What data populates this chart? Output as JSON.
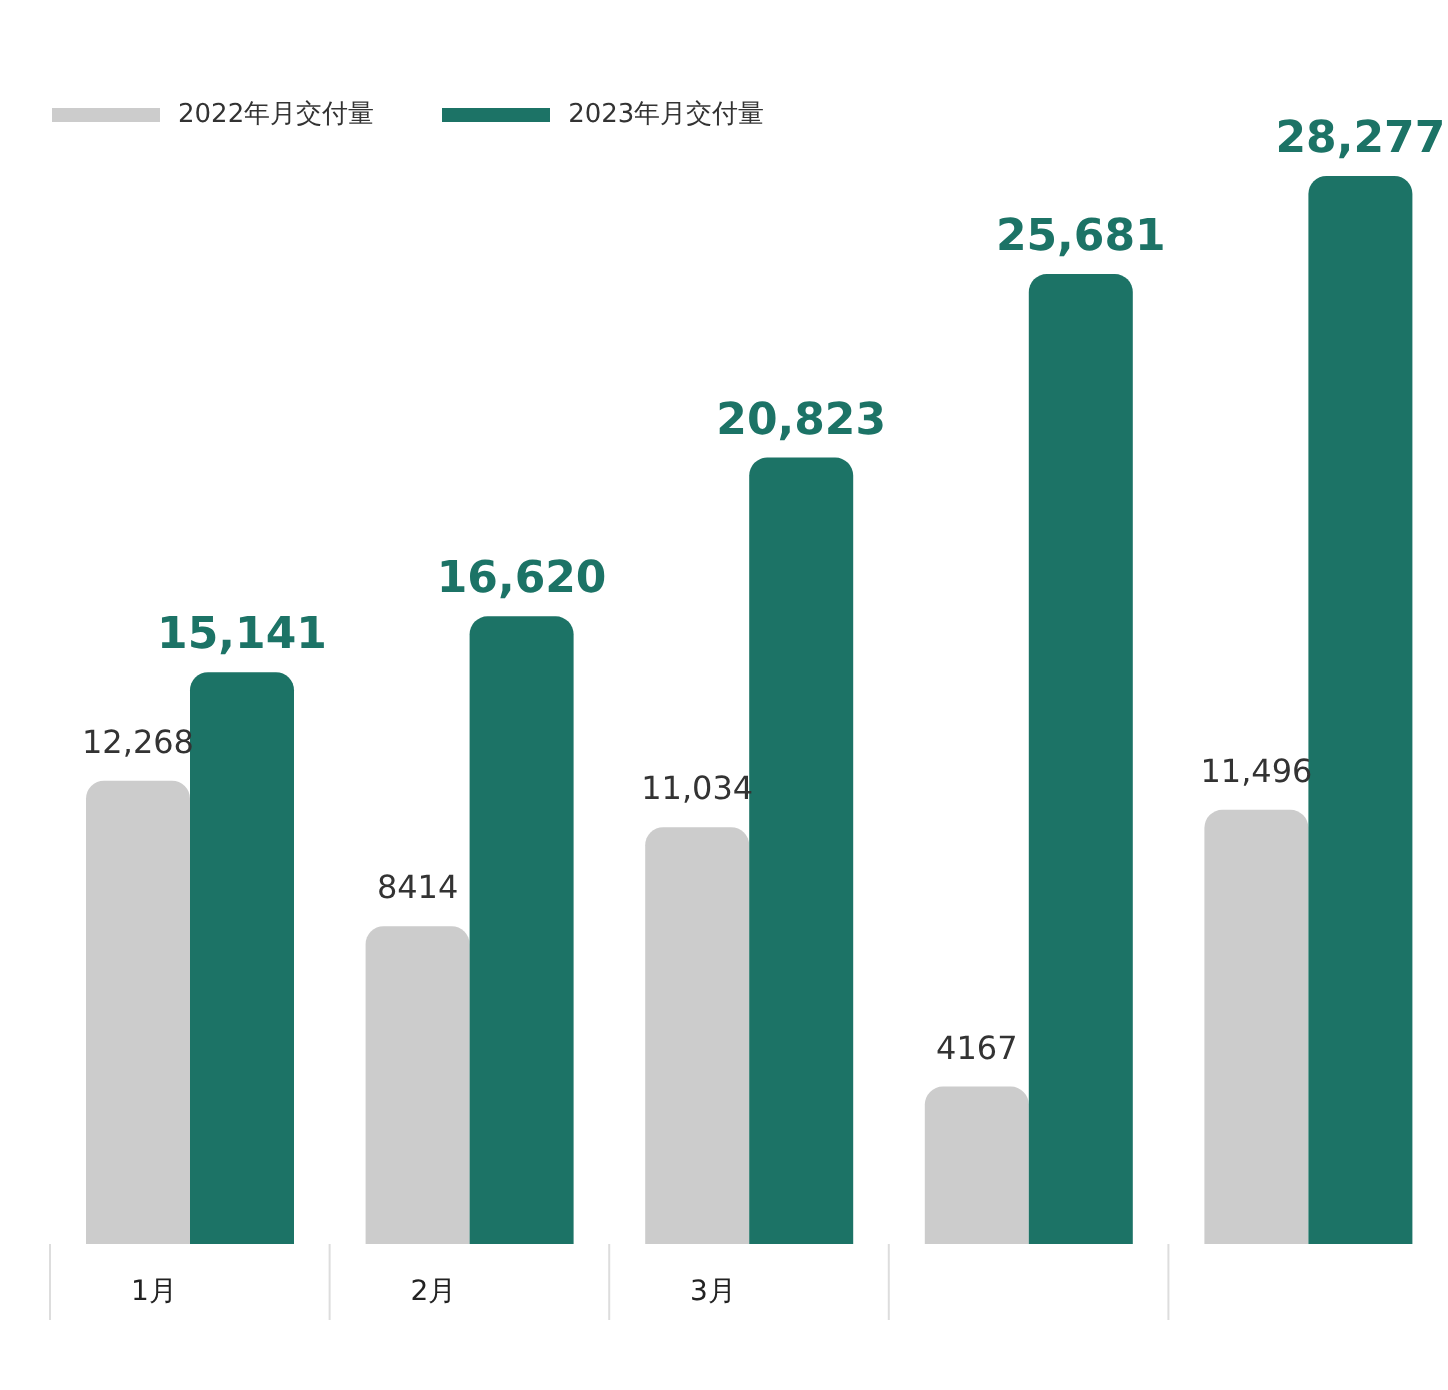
{
  "chart_data": {
    "type": "bar",
    "categories": [
      "1月",
      "2月",
      "3月",
      null,
      null
    ],
    "legend": "top left",
    "grid": false,
    "series": [
      {
        "name": "2022年月交付量",
        "color": "#cccccc",
        "values": [
          12268,
          8414,
          11034,
          4167,
          11496
        ],
        "value_labels": [
          "12,268",
          "8414",
          "11,034",
          "4167",
          "11,496"
        ]
      },
      {
        "name": "2023年月交付量",
        "color": "#1c7366",
        "values": [
          15141,
          16620,
          20823,
          25681,
          28277
        ],
        "value_labels": [
          "15,141",
          "16,620",
          "20,823",
          "25,681",
          "28,277"
        ]
      }
    ]
  }
}
